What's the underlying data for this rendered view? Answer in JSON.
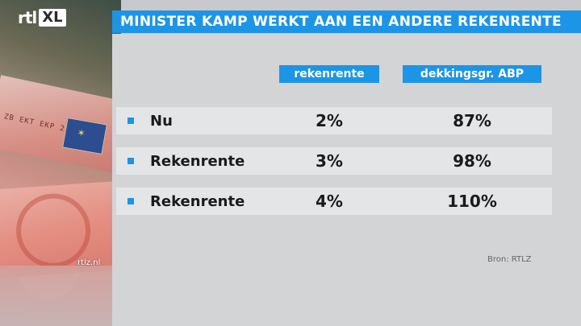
{
  "logo": {
    "rtl": "rtl",
    "xl": "XL"
  },
  "title": "MINISTER KAMP WERKT AAN EEN ANDERE REKENRENTE",
  "columns": {
    "rekenrente": "rekenrente",
    "dekking": "dekkingsgr. ABP"
  },
  "rows": [
    {
      "label": "Nu",
      "rekenrente": "2%",
      "dekking": "87%"
    },
    {
      "label": "Rekenrente",
      "rekenrente": "3%",
      "dekking": "98%"
    },
    {
      "label": "Rekenrente",
      "rekenrente": "4%",
      "dekking": "110%"
    }
  ],
  "source": "Bron: RTLZ",
  "site": "rtlz.nl",
  "colors": {
    "accent": "#1d95e6",
    "panel": "#d3d4d6"
  }
}
